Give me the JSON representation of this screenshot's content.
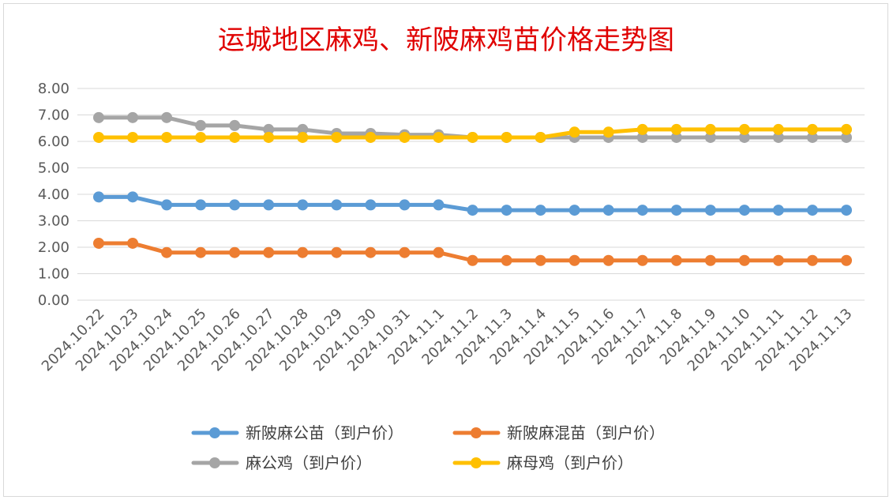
{
  "chart_data": {
    "type": "line",
    "title": "运城地区麻鸡、新陂麻鸡苗价格走势图",
    "xlabel": "",
    "ylabel": "",
    "ylim": [
      0,
      8
    ],
    "yticks": [
      "0.00",
      "1.00",
      "2.00",
      "3.00",
      "4.00",
      "5.00",
      "6.00",
      "7.00",
      "8.00"
    ],
    "grid": true,
    "legend_position": "bottom",
    "categories": [
      "2024.10.22",
      "2024.10.23",
      "2024.10.24",
      "2024.10.25",
      "2024.10.26",
      "2024.10.27",
      "2024.10.28",
      "2024.10.29",
      "2024.10.30",
      "2024.10.31",
      "2024.11.1",
      "2024.11.2",
      "2024.11.3",
      "2024.11.4",
      "2024.11.5",
      "2024.11.6",
      "2024.11.7",
      "2024.11.8",
      "2024.11.9",
      "2024.11.10",
      "2024.11.11",
      "2024.11.12",
      "2024.11.13"
    ],
    "series": [
      {
        "name": "新陂麻公苗（到户价）",
        "color": "#5b9bd5",
        "values": [
          3.9,
          3.9,
          3.6,
          3.6,
          3.6,
          3.6,
          3.6,
          3.6,
          3.6,
          3.6,
          3.6,
          3.4,
          3.4,
          3.4,
          3.4,
          3.4,
          3.4,
          3.4,
          3.4,
          3.4,
          3.4,
          3.4,
          3.4
        ]
      },
      {
        "name": "新陂麻混苗（到户价）",
        "color": "#ed7d31",
        "values": [
          2.15,
          2.15,
          1.8,
          1.8,
          1.8,
          1.8,
          1.8,
          1.8,
          1.8,
          1.8,
          1.8,
          1.5,
          1.5,
          1.5,
          1.5,
          1.5,
          1.5,
          1.5,
          1.5,
          1.5,
          1.5,
          1.5,
          1.5
        ]
      },
      {
        "name": "麻公鸡（到户价）",
        "color": "#a5a5a5",
        "values": [
          6.9,
          6.9,
          6.9,
          6.6,
          6.6,
          6.45,
          6.45,
          6.3,
          6.3,
          6.25,
          6.25,
          6.15,
          6.15,
          6.15,
          6.15,
          6.15,
          6.15,
          6.15,
          6.15,
          6.15,
          6.15,
          6.15,
          6.15
        ]
      },
      {
        "name": "麻母鸡（到户价）",
        "color": "#ffc000",
        "values": [
          6.15,
          6.15,
          6.15,
          6.15,
          6.15,
          6.15,
          6.15,
          6.15,
          6.15,
          6.15,
          6.15,
          6.15,
          6.15,
          6.15,
          6.35,
          6.35,
          6.45,
          6.45,
          6.45,
          6.45,
          6.45,
          6.45,
          6.45
        ]
      }
    ]
  }
}
